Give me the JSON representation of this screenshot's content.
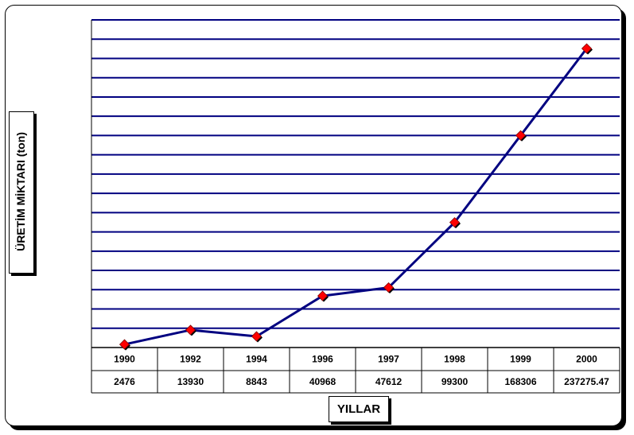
{
  "chart_data": {
    "type": "line",
    "title": "",
    "xlabel": "YILLAR",
    "ylabel": "ÜRETİM MİKTARI (ton)",
    "categories": [
      "1990",
      "1992",
      "1994",
      "1996",
      "1997",
      "1998",
      "1999",
      "2000"
    ],
    "series": [
      {
        "values": [
          2476,
          13930,
          8843,
          40968,
          47612,
          99300,
          168306,
          237275.47
        ],
        "value_labels": [
          "2476",
          "13930",
          "8843",
          "40968",
          "47612",
          "99300",
          "168306",
          "237275.47"
        ],
        "line_color": "#000080",
        "marker_color": "#ff0000",
        "marker": "diamond"
      }
    ],
    "ylim": [
      0,
      260000
    ],
    "gridlines": "horizontal",
    "grid_color": "#000080",
    "data_table": true
  }
}
